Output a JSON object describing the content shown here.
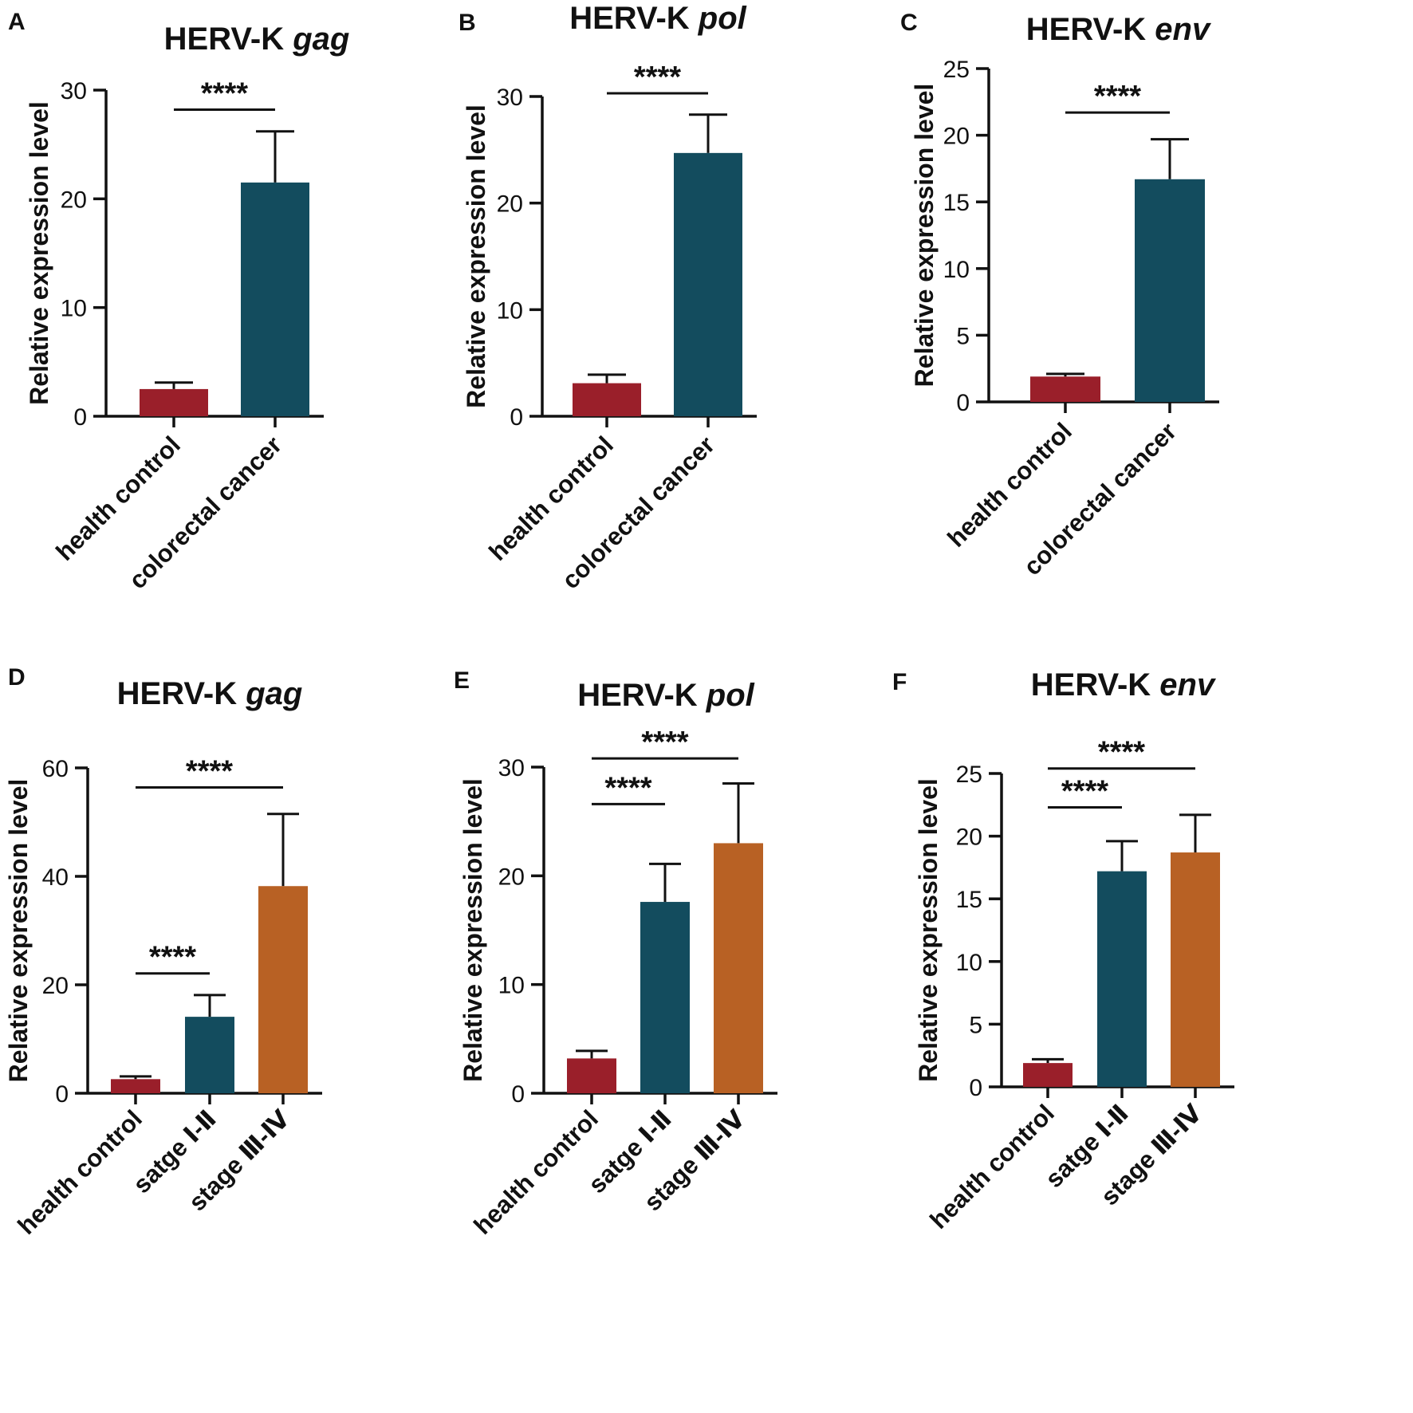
{
  "chart_data": [
    {
      "panel": "A",
      "type": "bar",
      "title": "HERV-K",
      "title_italic": "gag",
      "xlabel": "",
      "ylabel": "Relative expression level",
      "ylim": [
        0,
        30
      ],
      "yticks": [
        0,
        10,
        20,
        30
      ],
      "categories": [
        "health control",
        "colorectal cancer"
      ],
      "values": [
        2.5,
        21.5
      ],
      "errors": [
        0.6,
        4.7
      ],
      "colors": [
        "#9a1f2a",
        "#134c5e"
      ],
      "significance": [
        {
          "from": 0,
          "to": 1,
          "label": "****",
          "y": 28.2
        }
      ]
    },
    {
      "panel": "B",
      "type": "bar",
      "title": "HERV-K",
      "title_italic": "pol",
      "xlabel": "",
      "ylabel": "Relative expression level",
      "ylim": [
        0,
        30
      ],
      "yticks": [
        0,
        10,
        20,
        30
      ],
      "categories": [
        "health control",
        "colorectal cancer"
      ],
      "values": [
        3.1,
        24.7
      ],
      "errors": [
        0.8,
        3.6
      ],
      "colors": [
        "#9a1f2a",
        "#134c5e"
      ],
      "significance": [
        {
          "from": 0,
          "to": 1,
          "label": "****",
          "y": 30.3
        }
      ]
    },
    {
      "panel": "C",
      "type": "bar",
      "title": "HERV-K",
      "title_italic": "env",
      "xlabel": "",
      "ylabel": "Relative expression level",
      "ylim": [
        0,
        25
      ],
      "yticks": [
        0,
        5,
        10,
        15,
        20,
        25
      ],
      "categories": [
        "health control",
        "colorectal cancer"
      ],
      "values": [
        1.9,
        16.7
      ],
      "errors": [
        0.2,
        3.0
      ],
      "colors": [
        "#9a1f2a",
        "#134c5e"
      ],
      "significance": [
        {
          "from": 0,
          "to": 1,
          "label": "****",
          "y": 21.7
        }
      ]
    },
    {
      "panel": "D",
      "type": "bar",
      "title": "HERV-K",
      "title_italic": "gag",
      "xlabel": "",
      "ylabel": "Relative expression level",
      "ylim": [
        0,
        60
      ],
      "yticks": [
        0,
        20,
        40,
        60
      ],
      "categories": [
        "health control",
        "satge  Ⅰ-Ⅱ",
        "stage  Ⅲ-Ⅳ"
      ],
      "values": [
        2.6,
        14.1,
        38.2
      ],
      "errors": [
        0.5,
        4.0,
        13.3
      ],
      "colors": [
        "#9a1f2a",
        "#134c5e",
        "#b86124"
      ],
      "significance": [
        {
          "from": 0,
          "to": 1,
          "label": "****",
          "y": 22.1
        },
        {
          "from": 0,
          "to": 2,
          "label": "****",
          "y": 56.4
        }
      ]
    },
    {
      "panel": "E",
      "type": "bar",
      "title": "HERV-K",
      "title_italic": "pol",
      "xlabel": "",
      "ylabel": "Relative expression level",
      "ylim": [
        0,
        30
      ],
      "yticks": [
        0,
        10,
        20,
        30
      ],
      "categories": [
        "health control",
        "satge  Ⅰ-Ⅱ",
        "stage  Ⅲ-Ⅳ"
      ],
      "values": [
        3.2,
        17.6,
        23.0
      ],
      "errors": [
        0.7,
        3.5,
        5.5
      ],
      "colors": [
        "#9a1f2a",
        "#134c5e",
        "#b86124"
      ],
      "significance": [
        {
          "from": 0,
          "to": 1,
          "label": "****",
          "y": 26.6
        },
        {
          "from": 0,
          "to": 2,
          "label": "****",
          "y": 30.8
        }
      ]
    },
    {
      "panel": "F",
      "type": "bar",
      "title": "HERV-K",
      "title_italic": "env",
      "xlabel": "",
      "ylabel": "Relative expression level",
      "ylim": [
        0,
        25
      ],
      "yticks": [
        0,
        5,
        10,
        15,
        20,
        25
      ],
      "categories": [
        "health control",
        "satge  Ⅰ-Ⅱ",
        "stage  Ⅲ-Ⅳ"
      ],
      "values": [
        1.9,
        17.2,
        18.7
      ],
      "errors": [
        0.3,
        2.4,
        3.0
      ],
      "colors": [
        "#9a1f2a",
        "#134c5e",
        "#b86124"
      ],
      "significance": [
        {
          "from": 0,
          "to": 1,
          "label": "****",
          "y": 22.3
        },
        {
          "from": 0,
          "to": 2,
          "label": "****",
          "y": 25.4
        }
      ]
    }
  ]
}
